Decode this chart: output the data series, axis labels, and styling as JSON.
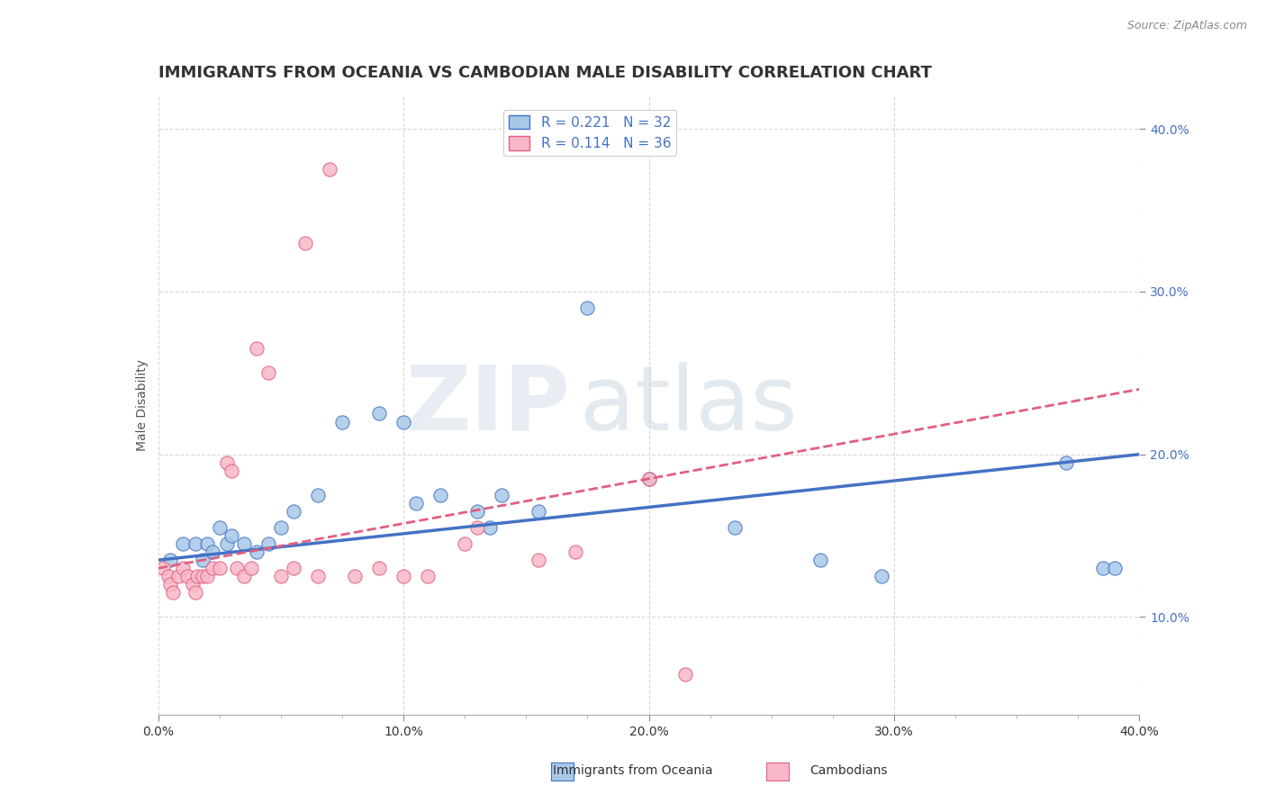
{
  "title": "IMMIGRANTS FROM OCEANIA VS CAMBODIAN MALE DISABILITY CORRELATION CHART",
  "source": "Source: ZipAtlas.com",
  "ylabel": "Male Disability",
  "xlim": [
    0.0,
    0.4
  ],
  "ylim": [
    0.04,
    0.42
  ],
  "xtick_labels": [
    "0.0%",
    "",
    "",
    "",
    "10.0%",
    "",
    "",
    "",
    "20.0%",
    "",
    "",
    "",
    "30.0%",
    "",
    "",
    "",
    "40.0%"
  ],
  "xtick_vals": [
    0.0,
    0.025,
    0.05,
    0.075,
    0.1,
    0.125,
    0.15,
    0.175,
    0.2,
    0.225,
    0.25,
    0.275,
    0.3,
    0.325,
    0.35,
    0.375,
    0.4
  ],
  "xtick_major_labels": [
    "0.0%",
    "10.0%",
    "20.0%",
    "30.0%",
    "40.0%"
  ],
  "xtick_major_vals": [
    0.0,
    0.1,
    0.2,
    0.3,
    0.4
  ],
  "ytick_labels": [
    "10.0%",
    "20.0%",
    "30.0%",
    "40.0%"
  ],
  "ytick_vals": [
    0.1,
    0.2,
    0.3,
    0.4
  ],
  "blue_color": "#a8c8e8",
  "pink_color": "#f8b8c8",
  "line_blue": "#4472c4",
  "line_pink": "#e06080",
  "text_color": "#4472c4",
  "watermark_zip": "ZIP",
  "watermark_atlas": "atlas",
  "blue_scatter_x": [
    0.005,
    0.01,
    0.015,
    0.018,
    0.02,
    0.022,
    0.025,
    0.028,
    0.03,
    0.035,
    0.04,
    0.045,
    0.05,
    0.055,
    0.065,
    0.075,
    0.09,
    0.1,
    0.105,
    0.115,
    0.13,
    0.135,
    0.14,
    0.155,
    0.175,
    0.2,
    0.235,
    0.27,
    0.295,
    0.37,
    0.385,
    0.39
  ],
  "blue_scatter_y": [
    0.135,
    0.145,
    0.145,
    0.135,
    0.145,
    0.14,
    0.155,
    0.145,
    0.15,
    0.145,
    0.14,
    0.145,
    0.155,
    0.165,
    0.175,
    0.22,
    0.225,
    0.22,
    0.17,
    0.175,
    0.165,
    0.155,
    0.175,
    0.165,
    0.29,
    0.185,
    0.155,
    0.135,
    0.125,
    0.195,
    0.13,
    0.13
  ],
  "pink_scatter_x": [
    0.002,
    0.004,
    0.005,
    0.006,
    0.008,
    0.01,
    0.012,
    0.014,
    0.015,
    0.016,
    0.018,
    0.02,
    0.022,
    0.025,
    0.028,
    0.03,
    0.032,
    0.035,
    0.038,
    0.04,
    0.045,
    0.05,
    0.055,
    0.06,
    0.065,
    0.07,
    0.08,
    0.09,
    0.1,
    0.11,
    0.125,
    0.13,
    0.155,
    0.17,
    0.2,
    0.215
  ],
  "pink_scatter_y": [
    0.13,
    0.125,
    0.12,
    0.115,
    0.125,
    0.13,
    0.125,
    0.12,
    0.115,
    0.125,
    0.125,
    0.125,
    0.13,
    0.13,
    0.195,
    0.19,
    0.13,
    0.125,
    0.13,
    0.265,
    0.25,
    0.125,
    0.13,
    0.33,
    0.125,
    0.375,
    0.125,
    0.13,
    0.125,
    0.125,
    0.145,
    0.155,
    0.135,
    0.14,
    0.185,
    0.065
  ],
  "grid_color": "#d8d8d8",
  "background_color": "#ffffff",
  "title_fontsize": 13,
  "axis_label_fontsize": 10,
  "tick_fontsize": 10,
  "legend_fontsize": 11
}
